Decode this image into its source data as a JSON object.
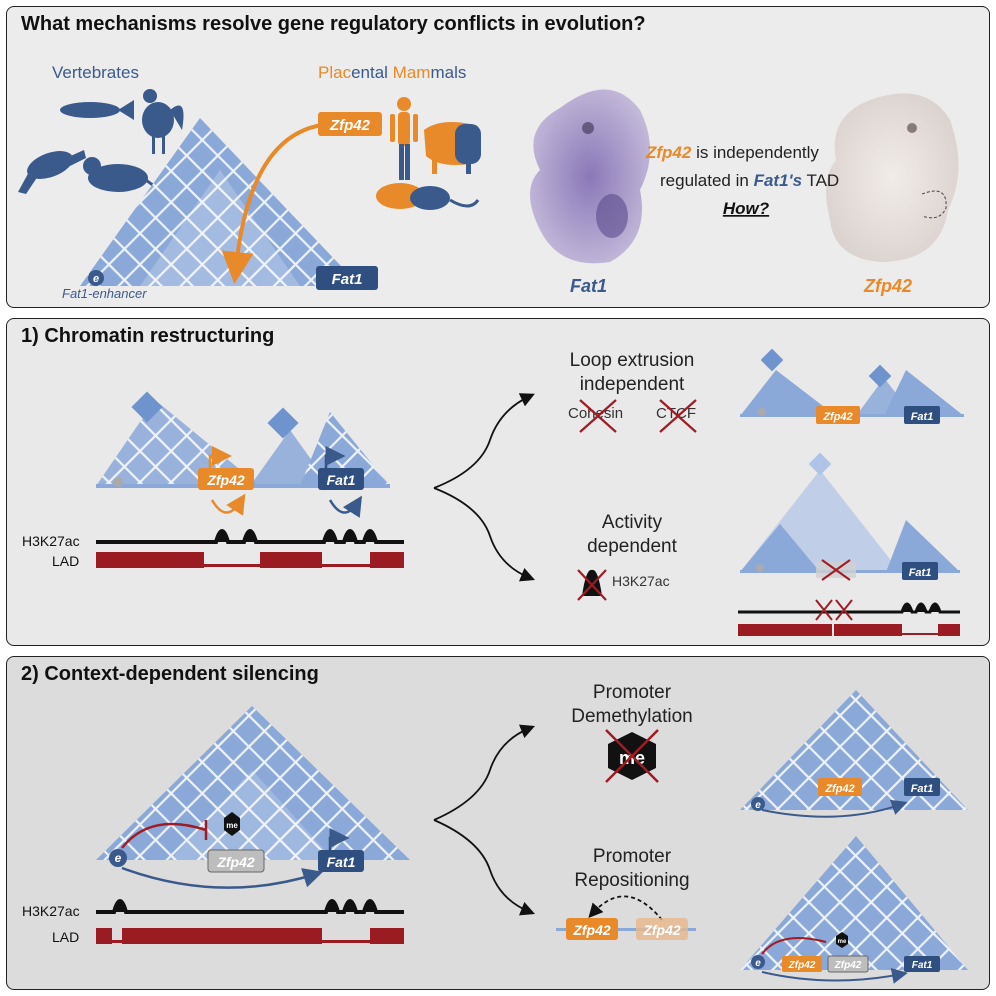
{
  "panel1": {
    "title": "What mechanisms resolve gene regulatory conflicts in evolution?",
    "vertebrates": "Vertebrates",
    "placental_parts": [
      "Plac",
      "ental ",
      "Mam",
      "mals"
    ],
    "gene_zfp42": "Zfp42",
    "gene_fat1": "Fat1",
    "enhancer_letter": "e",
    "enhancer_label": "Fat1-enhancer",
    "statement_gene": "Zfp42",
    "statement_1": " is independently",
    "statement_2a": "regulated in ",
    "statement_2b": "Fat1's",
    "statement_2c": " TAD",
    "question": "How?",
    "embryo_left_label": "Fat1",
    "embryo_right_label": "Zfp42"
  },
  "panel2": {
    "title": "1) Chromatin restructuring",
    "track_h3k27ac": "H3K27ac",
    "track_lad": "LAD",
    "gene_zfp42": "Zfp42",
    "gene_fat1": "Fat1",
    "mech1_line1": "Loop extrusion",
    "mech1_line2": "independent",
    "cohesin": "Cohesin",
    "ctcf": "CTCF",
    "mech2_line1": "Activity",
    "mech2_line2": "dependent",
    "mech2_mark": "H3K27ac"
  },
  "panel3": {
    "title": "2) Context-dependent silencing",
    "track_h3k27ac": "H3K27ac",
    "track_lad": "LAD",
    "gene_zfp42": "Zfp42",
    "gene_fat1": "Fat1",
    "enhancer_letter": "e",
    "methyl": "me",
    "mech1_line1": "Promoter",
    "mech1_line2": "Demethylation",
    "mech2_line1": "Promoter",
    "mech2_line2": "Repositioning"
  },
  "colors": {
    "blue": "#3a5a8c",
    "light_blue": "#8aa8d8",
    "orange": "#e8892a",
    "red": "#a01c24",
    "lad": "#9b1b22"
  }
}
